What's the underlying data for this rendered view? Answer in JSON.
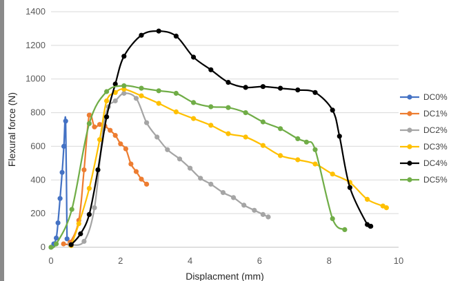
{
  "chart_data": {
    "type": "line",
    "title": "",
    "xlabel": "Displacment (mm)",
    "ylabel": "Flexural force (N)",
    "xlim": [
      0,
      10
    ],
    "ylim": [
      0,
      1400
    ],
    "xticks": [
      0,
      2,
      4,
      6,
      8,
      10
    ],
    "yticks": [
      0,
      200,
      400,
      600,
      800,
      1000,
      1200,
      1400
    ],
    "grid": "horizontal",
    "legend_position": "right",
    "series": [
      {
        "name": "DC0%",
        "color": "#4472C4",
        "points": [
          [
            0,
            0
          ],
          [
            0.08,
            20
          ],
          [
            0.15,
            55
          ],
          [
            0.2,
            145
          ],
          [
            0.26,
            290
          ],
          [
            0.32,
            445
          ],
          [
            0.37,
            600
          ],
          [
            0.42,
            750
          ],
          [
            0.46,
            50
          ]
        ]
      },
      {
        "name": "DC1%",
        "color": "#ED7D31",
        "points": [
          [
            0.36,
            20
          ],
          [
            0.55,
            30
          ],
          [
            0.8,
            160
          ],
          [
            0.95,
            460
          ],
          [
            1.1,
            785
          ],
          [
            1.25,
            715
          ],
          [
            1.4,
            730
          ],
          [
            1.55,
            720
          ],
          [
            1.7,
            695
          ],
          [
            1.85,
            665
          ],
          [
            2.0,
            615
          ],
          [
            2.15,
            585
          ],
          [
            2.3,
            495
          ],
          [
            2.45,
            450
          ],
          [
            2.6,
            405
          ],
          [
            2.75,
            375
          ]
        ]
      },
      {
        "name": "DC2%",
        "color": "#A5A5A5",
        "points": [
          [
            0.55,
            15
          ],
          [
            0.95,
            35
          ],
          [
            1.25,
            235
          ],
          [
            1.5,
            700
          ],
          [
            1.65,
            835
          ],
          [
            1.85,
            870
          ],
          [
            2.1,
            915
          ],
          [
            2.45,
            885
          ],
          [
            2.75,
            740
          ],
          [
            3.05,
            655
          ],
          [
            3.35,
            580
          ],
          [
            3.7,
            525
          ],
          [
            4.0,
            470
          ],
          [
            4.3,
            410
          ],
          [
            4.6,
            375
          ],
          [
            4.95,
            325
          ],
          [
            5.25,
            295
          ],
          [
            5.55,
            250
          ],
          [
            5.85,
            220
          ],
          [
            6.1,
            195
          ],
          [
            6.25,
            180
          ]
        ]
      },
      {
        "name": "DC3%",
        "color": "#FFC000",
        "points": [
          [
            0.58,
            10
          ],
          [
            0.8,
            140
          ],
          [
            1.1,
            350
          ],
          [
            1.4,
            640
          ],
          [
            1.6,
            870
          ],
          [
            1.85,
            920
          ],
          [
            2.1,
            940
          ],
          [
            2.6,
            900
          ],
          [
            3.1,
            855
          ],
          [
            3.6,
            805
          ],
          [
            4.1,
            765
          ],
          [
            4.6,
            725
          ],
          [
            5.1,
            675
          ],
          [
            5.6,
            655
          ],
          [
            6.1,
            605
          ],
          [
            6.6,
            545
          ],
          [
            7.1,
            520
          ],
          [
            7.6,
            495
          ],
          [
            8.1,
            435
          ],
          [
            8.6,
            385
          ],
          [
            9.1,
            285
          ],
          [
            9.55,
            245
          ],
          [
            9.65,
            235
          ]
        ]
      },
      {
        "name": "DC4%",
        "color": "#000000",
        "points": [
          [
            0.58,
            15
          ],
          [
            0.85,
            80
          ],
          [
            1.1,
            195
          ],
          [
            1.35,
            460
          ],
          [
            1.6,
            775
          ],
          [
            1.85,
            970
          ],
          [
            2.1,
            1135
          ],
          [
            2.6,
            1260
          ],
          [
            3.1,
            1285
          ],
          [
            3.6,
            1255
          ],
          [
            4.1,
            1130
          ],
          [
            4.6,
            1055
          ],
          [
            5.1,
            980
          ],
          [
            5.6,
            950
          ],
          [
            6.1,
            955
          ],
          [
            6.6,
            945
          ],
          [
            7.1,
            935
          ],
          [
            7.6,
            920
          ],
          [
            8.1,
            815
          ],
          [
            8.3,
            660
          ],
          [
            8.6,
            355
          ],
          [
            9.1,
            135
          ],
          [
            9.2,
            125
          ]
        ]
      },
      {
        "name": "DC5%",
        "color": "#70AD47",
        "points": [
          [
            0,
            0
          ],
          [
            0.15,
            20
          ],
          [
            0.6,
            225
          ],
          [
            1.1,
            735
          ],
          [
            1.6,
            925
          ],
          [
            2.1,
            960
          ],
          [
            2.6,
            945
          ],
          [
            3.1,
            930
          ],
          [
            3.6,
            915
          ],
          [
            4.1,
            860
          ],
          [
            4.6,
            835
          ],
          [
            5.1,
            830
          ],
          [
            5.6,
            800
          ],
          [
            6.1,
            745
          ],
          [
            6.6,
            705
          ],
          [
            7.1,
            645
          ],
          [
            7.35,
            625
          ],
          [
            7.6,
            580
          ],
          [
            8.1,
            170
          ],
          [
            8.45,
            105
          ]
        ]
      }
    ]
  }
}
